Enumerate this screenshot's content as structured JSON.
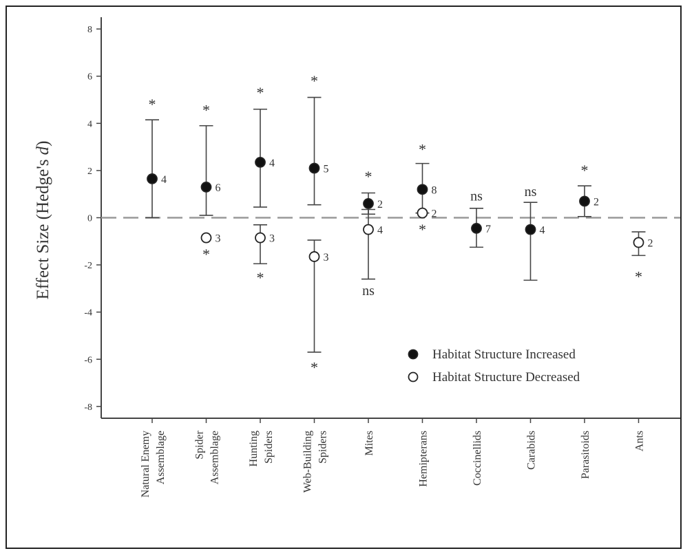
{
  "chart_data": {
    "type": "scatter",
    "ylabel_main": "Effect Size (Hedge's ",
    "ylabel_italic": "d",
    "ylabel_end": ")",
    "ylim": [
      -8.5,
      8.5
    ],
    "yticks": [
      8,
      6,
      4,
      2,
      0,
      -2,
      -4,
      -6,
      -8
    ],
    "categories": [
      [
        "Natural Enemy",
        "Assemblage"
      ],
      [
        "Spider",
        "Assemblage"
      ],
      [
        "Hunting",
        "Spiders"
      ],
      [
        "Web-Building",
        "Spiders"
      ],
      [
        "Mites"
      ],
      [
        "Hemipterans"
      ],
      [
        "Coccinellids"
      ],
      [
        "Carabids"
      ],
      [
        "Parasitoids"
      ],
      [
        "Ants"
      ]
    ],
    "series": [
      {
        "name": "Habitat Structure Increased",
        "filled": true,
        "points": [
          {
            "cat": 0,
            "y": 1.65,
            "lo": 0.0,
            "hi": 4.15,
            "n": "4",
            "sig": "*",
            "sig_pos": 4.85
          },
          {
            "cat": 1,
            "y": 1.3,
            "lo": 0.1,
            "hi": 3.9,
            "n": "6",
            "sig": "*",
            "sig_pos": 4.6
          },
          {
            "cat": 2,
            "y": 2.35,
            "lo": 0.45,
            "hi": 4.6,
            "n": "4",
            "sig": "*",
            "sig_pos": 5.35
          },
          {
            "cat": 3,
            "y": 2.1,
            "lo": 0.55,
            "hi": 5.1,
            "n": "5",
            "sig": "*",
            "sig_pos": 5.85
          },
          {
            "cat": 4,
            "y": 0.6,
            "lo": 0.15,
            "hi": 1.05,
            "n": "2",
            "sig": "*",
            "sig_pos": 1.8
          },
          {
            "cat": 5,
            "y": 1.2,
            "lo": 0.2,
            "hi": 2.3,
            "n": "8",
            "sig": "*",
            "sig_pos": 2.95
          },
          {
            "cat": 6,
            "y": -0.45,
            "lo": -1.25,
            "hi": 0.4,
            "n": "7",
            "sig": "ns",
            "sig_pos": 0.9
          },
          {
            "cat": 7,
            "y": -0.5,
            "lo": -2.65,
            "hi": 0.65,
            "n": "4",
            "sig": "ns",
            "sig_pos": 1.1
          },
          {
            "cat": 8,
            "y": 0.7,
            "lo": 0.05,
            "hi": 1.35,
            "n": "2",
            "sig": "*",
            "sig_pos": 2.05
          }
        ]
      },
      {
        "name": "Habitat Structure Decreased",
        "filled": false,
        "points": [
          {
            "cat": 1,
            "y": -0.85,
            "lo": null,
            "hi": null,
            "n": "3",
            "sig": "*",
            "sig_pos": -1.5
          },
          {
            "cat": 2,
            "y": -0.85,
            "lo": -1.95,
            "hi": -0.3,
            "n": "3",
            "sig": "*",
            "sig_pos": -2.5
          },
          {
            "cat": 3,
            "y": -1.65,
            "lo": -5.7,
            "hi": -0.95,
            "n": "3",
            "sig": "*",
            "sig_pos": -6.3
          },
          {
            "cat": 4,
            "y": -0.5,
            "lo": -2.6,
            "hi": 0.35,
            "n": "4",
            "sig": "ns",
            "sig_pos": -3.1
          },
          {
            "cat": 5,
            "y": 0.2,
            "lo": null,
            "hi": null,
            "n": "2",
            "sig": "*",
            "sig_pos": -0.45
          },
          {
            "cat": 9,
            "y": -1.05,
            "lo": -1.6,
            "hi": -0.6,
            "n": "2",
            "sig": "*",
            "sig_pos": -2.45
          }
        ]
      }
    ],
    "reference_line": 0,
    "legend_position": "bottom-right"
  }
}
